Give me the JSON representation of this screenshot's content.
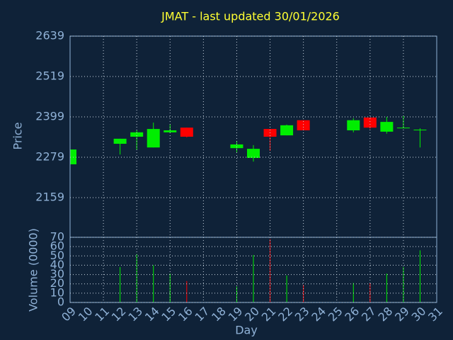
{
  "chart_data": {
    "type": "candlestick",
    "title": "JMAT - last updated 30/01/2026",
    "x_label": "Day",
    "y_label": "Price",
    "y2_label": "Volume (0000)",
    "x": [
      9,
      12,
      13,
      14,
      15,
      16,
      19,
      20,
      21,
      22,
      23,
      26,
      27,
      28,
      29,
      30
    ],
    "open": [
      2258,
      2319,
      2340,
      2308,
      2353,
      2367,
      2306,
      2277,
      2363,
      2344,
      2389,
      2359,
      2397,
      2355,
      2365,
      2359
    ],
    "high": [
      2302,
      2334,
      2359,
      2382,
      2376,
      2367,
      2327,
      2315,
      2363,
      2376,
      2389,
      2395,
      2397,
      2399,
      2403,
      2365
    ],
    "low": [
      2258,
      2287,
      2302,
      2308,
      2353,
      2338,
      2294,
      2266,
      2298,
      2344,
      2359,
      2353,
      2363,
      2349,
      2365,
      2308
    ],
    "close": [
      2302,
      2334,
      2353,
      2363,
      2359,
      2340,
      2317,
      2304,
      2340,
      2374,
      2359,
      2389,
      2367,
      2384,
      2367,
      2361
    ],
    "volume": [
      null,
      38,
      52,
      40,
      31,
      23,
      17,
      51,
      68,
      29,
      19,
      21,
      21,
      31,
      38,
      56
    ],
    "up_color": "#00ee00",
    "down_color": "#ff0000",
    "xlim": [
      9,
      31
    ],
    "xticks": [
      {
        "value": 9,
        "label": "09"
      },
      10,
      11,
      12,
      13,
      14,
      15,
      16,
      17,
      18,
      19,
      20,
      21,
      22,
      23,
      24,
      25,
      26,
      27,
      28,
      29,
      30,
      31
    ],
    "ylim": [
      2041,
      2639
    ],
    "yticks": [
      2159,
      2279,
      2399,
      2519,
      2639
    ],
    "y2lim": [
      0,
      70
    ],
    "y2ticks": [
      0,
      10,
      20,
      30,
      40,
      50,
      60,
      70
    ],
    "grid": true
  }
}
